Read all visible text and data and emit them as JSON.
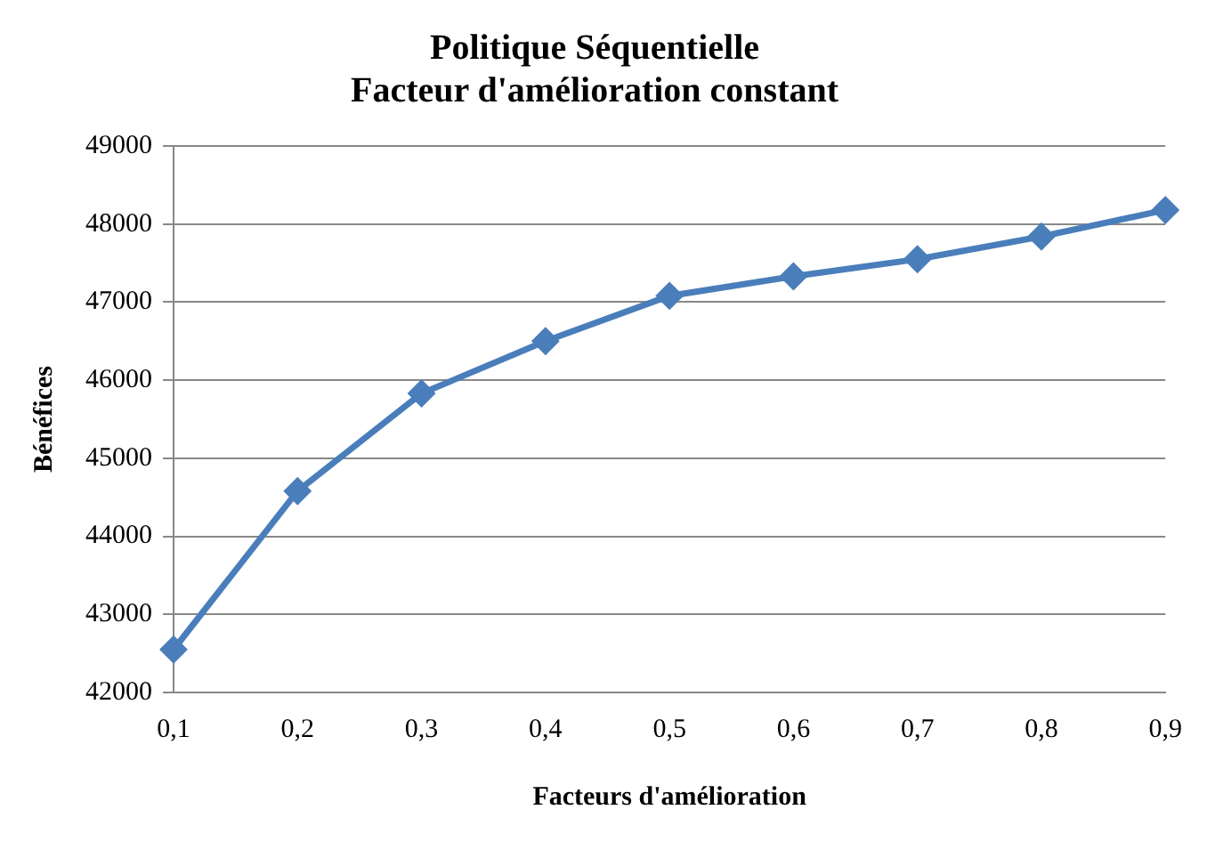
{
  "chart_data": {
    "type": "line",
    "title": [
      "Politique Séquentielle",
      "Facteur d'amélioration constant"
    ],
    "xlabel": "Facteurs d'amélioration",
    "ylabel": "Bénéfices",
    "categories": [
      "0,1",
      "0,2",
      "0,3",
      "0,4",
      "0,5",
      "0,6",
      "0,7",
      "0,8",
      "0,9"
    ],
    "series": [
      {
        "color": "#4a7ebb",
        "values": [
          42550,
          44580,
          45830,
          46500,
          47080,
          47330,
          47550,
          47840,
          48180
        ]
      }
    ],
    "ylim": [
      42000,
      49000
    ],
    "yticks": [
      42000,
      43000,
      44000,
      45000,
      46000,
      47000,
      48000,
      49000
    ],
    "grid": "y",
    "legend": false,
    "marker": "diamond",
    "line_style": "solid"
  }
}
